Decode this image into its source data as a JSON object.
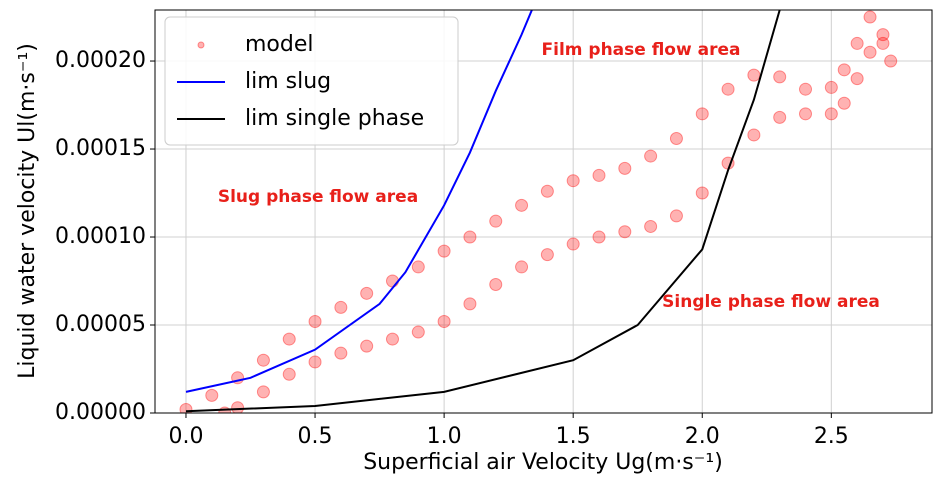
{
  "chart_data": {
    "type": "scatter",
    "x_label": "Superficial air Velocity Ug(m·s⁻¹)",
    "y_label": "Liquid water velocity Ul(m·s⁻¹)",
    "xlim": [
      -0.12,
      2.89
    ],
    "ylim": [
      0,
      0.000229
    ],
    "xticks": [
      {
        "value": 0,
        "label": "0.0"
      },
      0.5,
      {
        "value": 1,
        "label": "1.0"
      },
      1.5,
      {
        "value": 2,
        "label": "2.0"
      },
      2.5
    ],
    "yticks": [
      {
        "value": 0,
        "label": "0.00000"
      },
      {
        "value": 5e-05,
        "label": "0.00005"
      },
      {
        "value": 0.0001,
        "label": "0.00010"
      },
      {
        "value": 0.00015,
        "label": "0.00015"
      },
      {
        "value": 0.0002,
        "label": "0.00020"
      }
    ],
    "grid": true,
    "legend": "upper left",
    "annotations": [
      "Film phase flow area",
      "Slug phase flow area",
      "Single phase flow area"
    ],
    "series": [
      {
        "name": "model",
        "type": "scatter",
        "color": "#ff0000",
        "x": [
          0.0,
          0.1,
          0.2,
          0.3,
          0.4,
          0.5,
          0.6,
          0.7,
          0.8,
          0.9,
          1.0,
          1.1,
          1.2,
          1.3,
          1.4,
          1.5,
          1.6,
          1.7,
          1.8,
          1.9,
          2.0,
          2.1,
          2.2,
          2.3,
          2.4,
          2.5,
          2.55,
          2.6,
          2.65,
          2.7,
          2.73,
          0.15,
          0.2,
          0.3,
          0.4,
          0.5,
          0.6,
          0.7,
          0.8,
          0.9,
          1.0,
          1.1,
          1.2,
          1.3,
          1.4,
          1.5,
          1.6,
          1.7,
          1.8,
          1.9,
          2.0,
          2.1,
          2.2,
          2.3,
          2.4,
          2.5,
          2.55,
          2.6,
          2.65,
          2.7
        ],
        "values": [
          2e-06,
          1e-05,
          2e-05,
          3e-05,
          4.2e-05,
          5.2e-05,
          6e-05,
          6.8e-05,
          7.5e-05,
          8.3e-05,
          9.2e-05,
          0.0001,
          0.000109,
          0.000118,
          0.000126,
          0.000132,
          0.000135,
          0.000139,
          0.000146,
          0.000156,
          0.00017,
          0.000184,
          0.000192,
          0.000191,
          0.000184,
          0.000185,
          0.000195,
          0.00021,
          0.000225,
          0.000215,
          0.0002,
          0.0,
          3e-06,
          1.2e-05,
          2.2e-05,
          2.9e-05,
          3.4e-05,
          3.8e-05,
          4.2e-05,
          4.6e-05,
          5.2e-05,
          6.2e-05,
          7.3e-05,
          8.3e-05,
          9e-05,
          9.6e-05,
          0.0001,
          0.000103,
          0.000106,
          0.000112,
          0.000125,
          0.000142,
          0.000158,
          0.000168,
          0.00017,
          0.00017,
          0.000176,
          0.00019,
          0.000205,
          0.00021
        ]
      },
      {
        "name": "lim slug",
        "type": "line",
        "color": "#0000ff",
        "x": [
          0.0,
          0.25,
          0.5,
          0.75,
          0.85,
          1.0,
          1.1,
          1.2,
          1.3,
          1.34
        ],
        "values": [
          1.2e-05,
          2e-05,
          3.6e-05,
          6.2e-05,
          8e-05,
          0.000118,
          0.000148,
          0.000183,
          0.000215,
          0.000229
        ]
      },
      {
        "name": "lim single phase",
        "type": "line",
        "color": "#000000",
        "x": [
          0.0,
          0.5,
          1.0,
          1.5,
          1.75,
          2.0,
          2.1,
          2.2,
          2.3
        ],
        "values": [
          1e-06,
          4e-06,
          1.2e-05,
          3e-05,
          5e-05,
          9.3e-05,
          0.000138,
          0.000178,
          0.000229
        ]
      }
    ]
  }
}
